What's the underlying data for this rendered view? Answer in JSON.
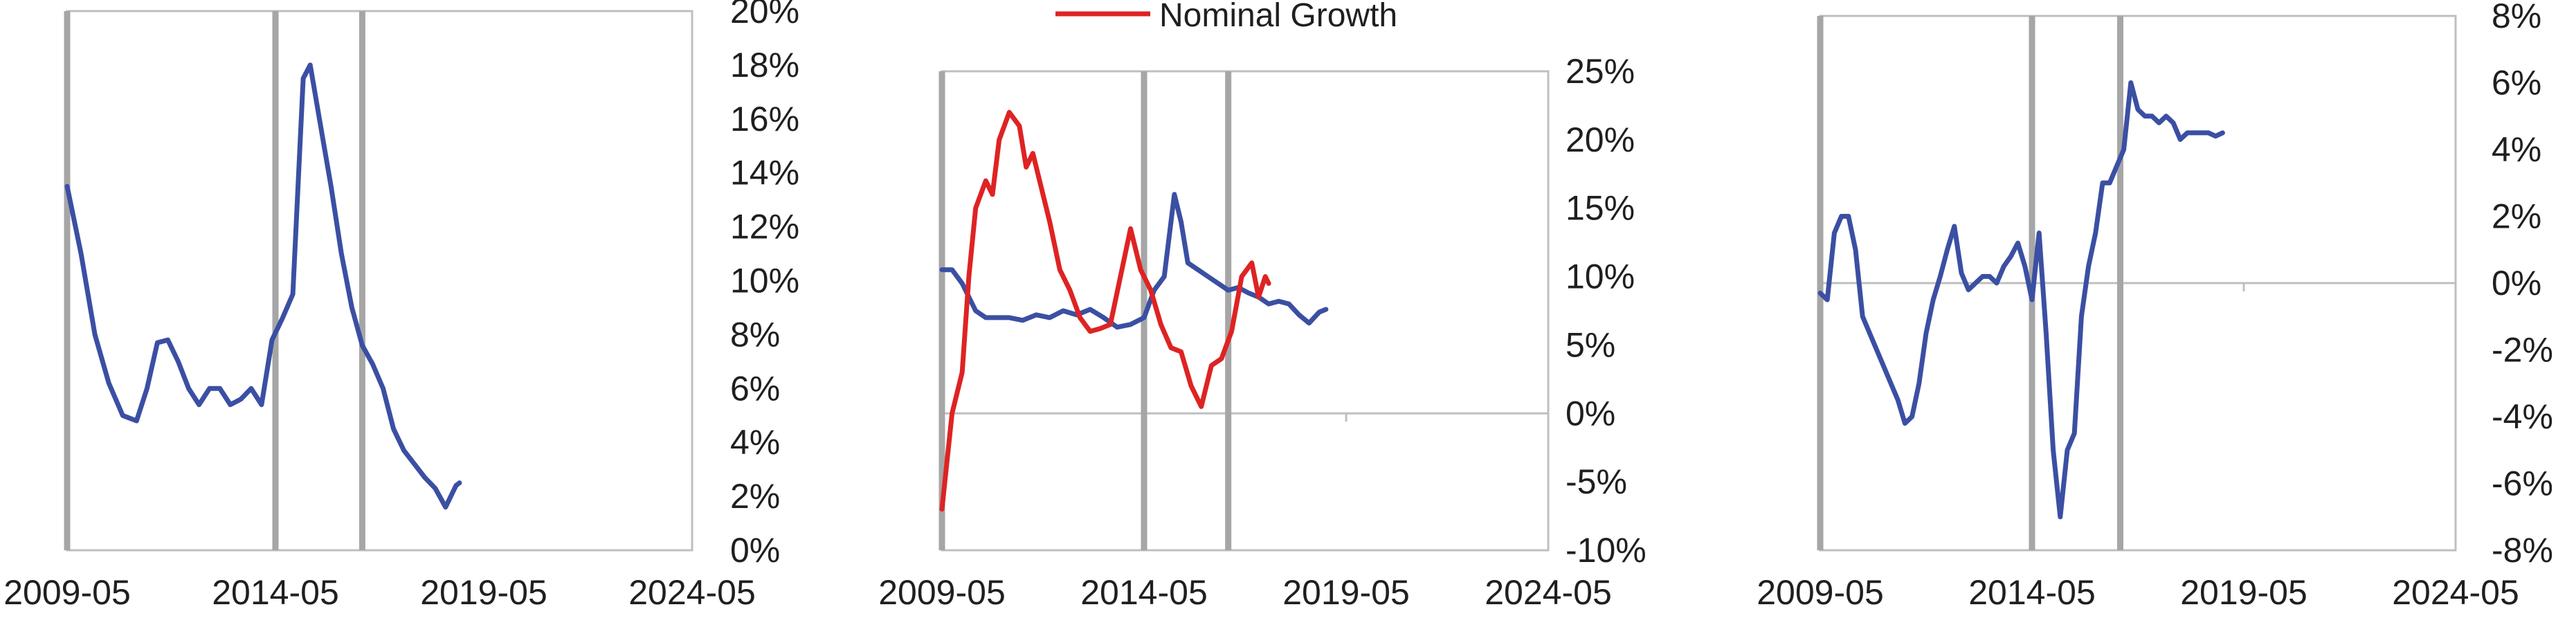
{
  "colors": {
    "blue": "#3b4fa3",
    "red": "#de2323",
    "event_line": "#a6a6a6",
    "grid_line": "#bfbfbf",
    "frame": "#bfbfbf",
    "text": "#1f1f1f"
  },
  "chart_data": [
    {
      "type": "line",
      "title": "",
      "xlabel": "",
      "ylabel": "",
      "x_ticks": [
        "2009-05",
        "2014-05",
        "2019-05",
        "2024-05"
      ],
      "y_ticks": [
        "0%",
        "2%",
        "4%",
        "6%",
        "8%",
        "10%",
        "12%",
        "14%",
        "16%",
        "18%",
        "20%"
      ],
      "xlim": [
        "2009-05",
        "2024-05"
      ],
      "ylim": [
        0,
        20
      ],
      "grid": false,
      "y_axis_side": "right",
      "event_lines": [
        "2009-05",
        "2014-05",
        "2016-06"
      ],
      "series": [
        {
          "color": "#3b4fa3",
          "x": [
            "2009-05",
            "2009-09",
            "2010-01",
            "2010-05",
            "2010-09",
            "2011-01",
            "2011-04",
            "2011-07",
            "2011-10",
            "2012-01",
            "2012-04",
            "2012-07",
            "2012-10",
            "2013-01",
            "2013-04",
            "2013-07",
            "2013-10",
            "2014-01",
            "2014-04",
            "2014-07",
            "2014-10",
            "2015-01",
            "2015-03",
            "2015-05",
            "2015-07",
            "2015-09",
            "2015-12",
            "2016-03",
            "2016-06",
            "2016-09",
            "2016-12",
            "2017-03",
            "2017-06",
            "2017-09",
            "2017-12",
            "2018-03",
            "2018-06",
            "2018-09",
            "2018-10"
          ],
          "y": [
            13.5,
            11.0,
            8.0,
            6.2,
            5.0,
            4.8,
            6.0,
            7.7,
            7.8,
            7.0,
            6.0,
            5.4,
            6.0,
            6.0,
            5.4,
            5.6,
            6.0,
            5.4,
            7.8,
            8.6,
            9.5,
            17.5,
            18.0,
            16.5,
            15.0,
            13.5,
            11.0,
            9.0,
            7.6,
            6.9,
            6.0,
            4.5,
            3.7,
            3.2,
            2.7,
            2.3,
            1.6,
            2.4,
            2.5
          ]
        }
      ]
    },
    {
      "type": "line",
      "title": "",
      "xlabel": "",
      "ylabel": "",
      "x_ticks": [
        "2009-05",
        "2014-05",
        "2019-05",
        "2024-05"
      ],
      "y_ticks": [
        "-10%",
        "-5%",
        "0%",
        "5%",
        "10%",
        "15%",
        "20%",
        "25%"
      ],
      "xlim": [
        "2009-05",
        "2024-05"
      ],
      "ylim": [
        -10,
        25
      ],
      "grid": false,
      "y_axis_side": "right",
      "legend": {
        "position": "top",
        "entries": [
          {
            "label": "Nominal Growth",
            "color": "#de2323"
          }
        ]
      },
      "event_lines": [
        "2009-05",
        "2014-05",
        "2016-06"
      ],
      "series": [
        {
          "color": "#3b4fa3",
          "x": [
            "2009-05",
            "2009-08",
            "2009-11",
            "2010-03",
            "2010-06",
            "2010-09",
            "2011-01",
            "2011-05",
            "2011-09",
            "2012-01",
            "2012-05",
            "2012-09",
            "2013-01",
            "2013-05",
            "2013-09",
            "2014-01",
            "2014-05",
            "2014-08",
            "2014-11",
            "2015-02",
            "2015-04",
            "2015-06",
            "2015-09",
            "2015-12",
            "2016-03",
            "2016-06",
            "2016-09",
            "2016-12",
            "2017-03",
            "2017-06",
            "2017-09",
            "2017-12",
            "2018-03",
            "2018-06",
            "2018-09",
            "2018-11"
          ],
          "y": [
            10.5,
            10.5,
            9.5,
            7.5,
            7.0,
            7.0,
            7.0,
            6.8,
            7.2,
            7.0,
            7.5,
            7.2,
            7.6,
            7.0,
            6.3,
            6.5,
            7.0,
            9.0,
            10.0,
            16.0,
            14.0,
            11.0,
            10.5,
            10.0,
            9.5,
            9.0,
            9.2,
            8.8,
            8.5,
            8.0,
            8.2,
            8.0,
            7.2,
            6.6,
            7.4,
            7.6
          ]
        },
        {
          "name": "Nominal Growth",
          "color": "#de2323",
          "x": [
            "2009-05",
            "2009-08",
            "2009-11",
            "2010-01",
            "2010-03",
            "2010-06",
            "2010-08",
            "2010-10",
            "2011-01",
            "2011-04",
            "2011-06",
            "2011-08",
            "2011-10",
            "2012-01",
            "2012-04",
            "2012-07",
            "2012-10",
            "2013-01",
            "2013-04",
            "2013-07",
            "2013-10",
            "2014-01",
            "2014-04",
            "2014-07",
            "2014-10",
            "2015-01",
            "2015-04",
            "2015-07",
            "2015-10",
            "2016-01",
            "2016-04",
            "2016-07",
            "2016-10",
            "2017-01",
            "2017-03",
            "2017-05",
            "2017-06"
          ],
          "y": [
            -7.0,
            0.0,
            3.0,
            10.0,
            15.0,
            17.0,
            16.0,
            20.0,
            22.0,
            21.0,
            18.0,
            19.0,
            17.0,
            14.0,
            10.5,
            9.0,
            7.0,
            6.0,
            6.2,
            6.5,
            10.0,
            13.5,
            10.5,
            9.0,
            6.5,
            4.8,
            4.5,
            2.0,
            0.5,
            3.5,
            4.0,
            6.0,
            10.0,
            11.0,
            8.5,
            10.0,
            9.5
          ]
        }
      ]
    },
    {
      "type": "line",
      "title": "",
      "xlabel": "",
      "ylabel": "",
      "x_ticks": [
        "2009-05",
        "2014-05",
        "2019-05",
        "2024-05"
      ],
      "y_ticks": [
        "-8%",
        "-6%",
        "-4%",
        "-2%",
        "0%",
        "2%",
        "4%",
        "6%",
        "8%"
      ],
      "xlim": [
        "2009-05",
        "2024-05"
      ],
      "ylim": [
        -8,
        8
      ],
      "grid": false,
      "y_axis_side": "right",
      "event_lines": [
        "2009-05",
        "2014-05",
        "2016-06"
      ],
      "series": [
        {
          "color": "#3b4fa3",
          "x": [
            "2009-05",
            "2009-07",
            "2009-09",
            "2009-11",
            "2010-01",
            "2010-03",
            "2010-05",
            "2010-07",
            "2010-09",
            "2010-11",
            "2011-01",
            "2011-03",
            "2011-05",
            "2011-07",
            "2011-09",
            "2011-11",
            "2012-01",
            "2012-03",
            "2012-05",
            "2012-07",
            "2012-09",
            "2012-11",
            "2013-01",
            "2013-03",
            "2013-05",
            "2013-07",
            "2013-09",
            "2013-11",
            "2014-01",
            "2014-03",
            "2014-05",
            "2014-07",
            "2014-09",
            "2014-11",
            "2015-01",
            "2015-03",
            "2015-05",
            "2015-07",
            "2015-09",
            "2015-11",
            "2016-01",
            "2016-03",
            "2016-05",
            "2016-07",
            "2016-09",
            "2016-11",
            "2017-01",
            "2017-03",
            "2017-05",
            "2017-07",
            "2017-09",
            "2017-11",
            "2018-01",
            "2018-03",
            "2018-05",
            "2018-07",
            "2018-09",
            "2018-11"
          ],
          "y": [
            -0.3,
            -0.5,
            1.5,
            2.0,
            2.0,
            1.0,
            -1.0,
            -1.5,
            -2.0,
            -2.5,
            -3.0,
            -3.5,
            -4.2,
            -4.0,
            -3.0,
            -1.5,
            -0.5,
            0.2,
            1.0,
            1.7,
            0.3,
            -0.2,
            0.0,
            0.2,
            0.2,
            0.0,
            0.5,
            0.8,
            1.2,
            0.5,
            -0.5,
            1.5,
            -1.5,
            -5.0,
            -7.0,
            -5.0,
            -4.5,
            -1.0,
            0.5,
            1.5,
            3.0,
            3.0,
            3.5,
            4.0,
            6.0,
            5.2,
            5.0,
            5.0,
            4.8,
            5.0,
            4.8,
            4.3,
            4.5,
            4.5,
            4.5,
            4.5,
            4.4,
            4.5
          ]
        }
      ]
    }
  ]
}
